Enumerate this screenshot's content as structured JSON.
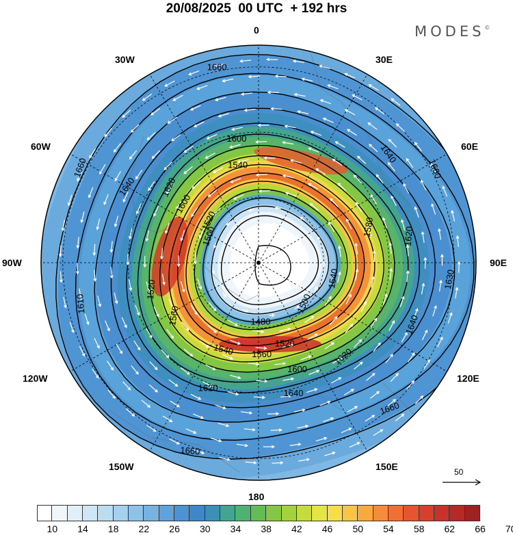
{
  "title": "20/08/2025  00 UTC  + 192 hrs",
  "logo": "MODES",
  "logo_mark": "©",
  "lon_labels": {
    "l0": "0",
    "l30e": "30E",
    "l60e": "60E",
    "l90e": "90E",
    "l120e": "120E",
    "l150e": "150E",
    "l180": "180",
    "l150w": "150W",
    "l120w": "120W",
    "l90w": "90W",
    "l60w": "60W",
    "l30w": "30W"
  },
  "contour_labels": [
    {
      "text": "1660",
      "lon": -12,
      "r": 0.92,
      "rot": 0
    },
    {
      "text": "1660",
      "lon": 62,
      "r": 0.92,
      "rot": 70
    },
    {
      "text": "1660",
      "lon": -62,
      "r": 0.93,
      "rot": -70
    },
    {
      "text": "1660",
      "lon": 138,
      "r": 0.9,
      "rot": -20
    },
    {
      "text": "1660",
      "lon": -160,
      "r": 0.92,
      "rot": 5
    },
    {
      "text": "1640",
      "lon": 50,
      "r": 0.78,
      "rot": 55
    },
    {
      "text": "1640",
      "lon": -60,
      "r": 0.7,
      "rot": -55
    },
    {
      "text": "1640",
      "lon": 165,
      "r": 0.62,
      "rot": 0
    },
    {
      "text": "1640",
      "lon": 112,
      "r": 0.76,
      "rot": -70
    },
    {
      "text": "1630",
      "lon": 95,
      "r": 0.88,
      "rot": -80
    },
    {
      "text": "1620",
      "lon": -50,
      "r": 0.54,
      "rot": -65
    },
    {
      "text": "1620",
      "lon": 80,
      "r": 0.7,
      "rot": -85
    },
    {
      "text": "1620",
      "lon": 138,
      "r": 0.58,
      "rot": -40
    },
    {
      "text": "1620",
      "lon": -158,
      "r": 0.62,
      "rot": 0
    },
    {
      "text": "1610",
      "lon": -103,
      "r": 0.84,
      "rot": -95
    },
    {
      "text": "1600",
      "lon": -10,
      "r": 0.58,
      "rot": 0
    },
    {
      "text": "1600",
      "lon": -52,
      "r": 0.44,
      "rot": -60
    },
    {
      "text": "1600",
      "lon": 160,
      "r": 0.52,
      "rot": 0
    },
    {
      "text": "1580",
      "lon": 72,
      "r": 0.53,
      "rot": -80
    },
    {
      "text": "1560",
      "lon": 178,
      "r": 0.42,
      "rot": 0
    },
    {
      "text": "1560",
      "lon": -122,
      "r": 0.46,
      "rot": -80
    },
    {
      "text": "1540",
      "lon": -12,
      "r": 0.46,
      "rot": 0
    },
    {
      "text": "1540",
      "lon": 102,
      "r": 0.35,
      "rot": -80
    },
    {
      "text": "1540",
      "lon": -158,
      "r": 0.43,
      "rot": 15
    },
    {
      "text": "1520",
      "lon": -50,
      "r": 0.3,
      "rot": -65
    },
    {
      "text": "1520",
      "lon": 162,
      "r": 0.39,
      "rot": 0
    },
    {
      "text": "1520",
      "lon": -104,
      "r": 0.51,
      "rot": -85
    },
    {
      "text": "1500",
      "lon": 132,
      "r": 0.28,
      "rot": -65
    },
    {
      "text": "1500",
      "lon": -62,
      "r": 0.26,
      "rot": -70
    },
    {
      "text": "1480",
      "lon": 178,
      "r": 0.27,
      "rot": 0
    }
  ],
  "colorbar": {
    "colors": [
      "#ffffff",
      "#f0f7fc",
      "#e1eff9",
      "#cfe6f6",
      "#bcdcf2",
      "#a7d0ee",
      "#8fc2e8",
      "#76b3e2",
      "#5ea3db",
      "#4b93d2",
      "#3f87c6",
      "#3d8fb6",
      "#43a493",
      "#4fb273",
      "#63bd55",
      "#83c744",
      "#a4d13d",
      "#c5dc3c",
      "#e5e645",
      "#f7dd4a",
      "#f9c547",
      "#f8aa41",
      "#f48d3b",
      "#ef6f35",
      "#e65430",
      "#d8402c",
      "#c83329",
      "#b52a26",
      "#9e2222"
    ],
    "tick_labels": [
      "10",
      "14",
      "18",
      "22",
      "26",
      "30",
      "34",
      "38",
      "42",
      "46",
      "50",
      "54",
      "58",
      "62",
      "66",
      "70"
    ]
  },
  "wind_reference": "50"
}
